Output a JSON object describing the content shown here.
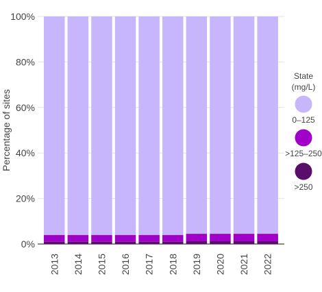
{
  "chart_data": {
    "type": "bar",
    "stacked": true,
    "percent": true,
    "categories": [
      "2013",
      "2014",
      "2015",
      "2016",
      "2017",
      "2018",
      "2019",
      "2020",
      "2021",
      "2022"
    ],
    "series": [
      {
        "name": ">250",
        "color": "#5a0e6b",
        "values": [
          1.0,
          1.0,
          1.0,
          1.0,
          1.0,
          1.0,
          1.2,
          1.2,
          1.2,
          1.2
        ]
      },
      {
        "name": ">125–250",
        "color": "#a000c8",
        "values": [
          3.0,
          3.0,
          3.0,
          3.0,
          3.0,
          3.0,
          3.3,
          3.3,
          3.3,
          3.3
        ]
      },
      {
        "name": "0–125",
        "color": "#c7b6fb",
        "values": [
          96.0,
          96.0,
          96.0,
          96.0,
          96.0,
          96.0,
          95.5,
          95.5,
          95.5,
          95.5
        ]
      }
    ],
    "ylabel": "Percentage of sites",
    "ylim": [
      0,
      100
    ],
    "yticks": [
      "0%",
      "20%",
      "40%",
      "60%",
      "80%",
      "100%"
    ],
    "grid": true,
    "legend": {
      "title_line1": "State",
      "title_line2": "(mg/L)",
      "placement": "right",
      "order": [
        "0–125",
        ">125–250",
        ">250"
      ]
    }
  }
}
